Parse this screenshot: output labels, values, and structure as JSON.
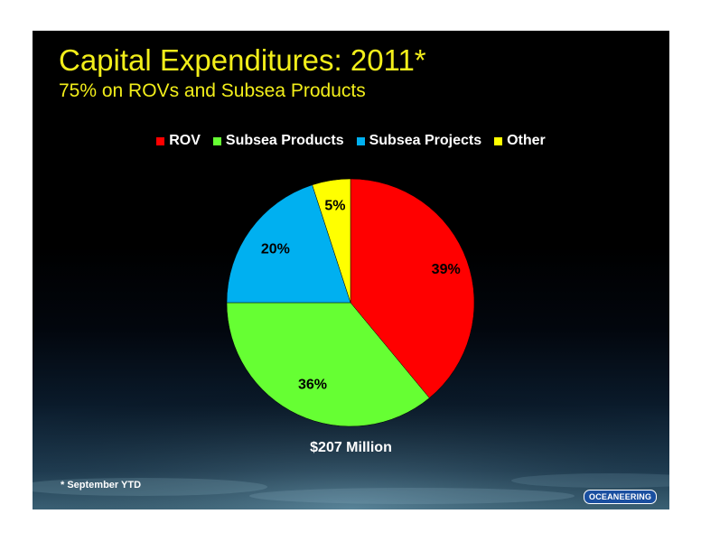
{
  "slide": {
    "title": "Capital Expenditures:  2011*",
    "subtitle": "75% on ROVs and Subsea Products",
    "total_label": "$207 Million",
    "footnote": "* September YTD",
    "logo_text": "OCEANEERING",
    "title_color": "#f2ee1a"
  },
  "chart_data": {
    "type": "pie",
    "title": "Capital Expenditures:  2011*",
    "subtitle": "75% on ROVs and Subsea Products",
    "legend_position": "top",
    "start_angle_deg": 0,
    "direction": "clockwise",
    "categories": [
      "ROV",
      "Subsea Products",
      "Subsea Projects",
      "Other"
    ],
    "values": [
      39,
      36,
      20,
      5
    ],
    "labels": [
      "39%",
      "36%",
      "20%",
      "5%"
    ],
    "colors": [
      "#ff0000",
      "#66ff33",
      "#00b0f0",
      "#ffff00"
    ],
    "total": "$207 Million"
  }
}
